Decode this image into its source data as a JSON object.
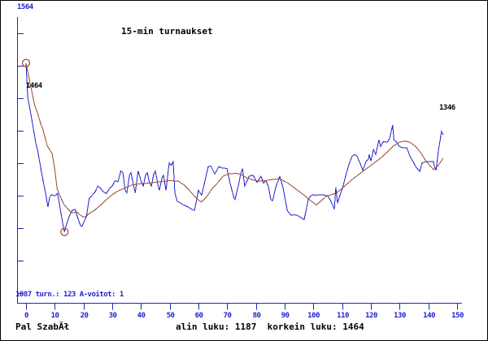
{
  "frame": {
    "background": "#ffffff",
    "border_color": "#000000"
  },
  "colors": {
    "axis_blue": "#2222cc",
    "rating_line_blue": "#2222cc",
    "trend_line_brown": "#9a4632",
    "marker_ring_brown": "#9a4632",
    "blue_text": "#2222cc",
    "black_text": "#000000"
  },
  "text": {
    "title": "15-min turnaukset",
    "y_max_label": "1564",
    "status_line": "1087 turn.: 123 A-voitot: 1",
    "start_value_label": "1464",
    "end_value_label": "1346",
    "player_name": "Pal SzabĂł",
    "summary_line": "alin luku: 1187  korkein luku: 1464"
  },
  "chart_data": {
    "type": "line",
    "title": "15-min turnaukset",
    "xlabel": "",
    "ylabel": "",
    "x_axis": {
      "min": 0,
      "max": 150,
      "tick_interval": 10,
      "ticks": [
        0,
        10,
        20,
        30,
        40,
        50,
        60,
        70,
        80,
        90,
        100,
        110,
        120,
        130,
        140,
        150
      ]
    },
    "y_axis": {
      "top_value": 1564,
      "bottom_value": 1087,
      "top_label": "1564",
      "bottom_label": "1087"
    },
    "stats": {
      "tournaments": 123,
      "a_wins": 1,
      "lowest": 1187,
      "highest": 1464,
      "start_value": 1464,
      "end_value": 1346
    },
    "legend": "none",
    "grid": false,
    "series": [
      {
        "name": "rating",
        "color": "#2222cc",
        "points": [
          [
            0,
            1464
          ],
          [
            0.6,
            1408
          ],
          [
            1.5,
            1385
          ],
          [
            2.5,
            1358
          ],
          [
            3.5,
            1330
          ],
          [
            4,
            1322
          ],
          [
            5,
            1295
          ],
          [
            5.4,
            1284
          ],
          [
            6.4,
            1260
          ],
          [
            7,
            1246
          ],
          [
            7.6,
            1228
          ],
          [
            8.2,
            1244
          ],
          [
            9,
            1248
          ],
          [
            10,
            1246
          ],
          [
            11,
            1250
          ],
          [
            12,
            1222
          ],
          [
            13,
            1195
          ],
          [
            13.4,
            1187
          ],
          [
            14,
            1198
          ],
          [
            15,
            1212
          ],
          [
            16,
            1222
          ],
          [
            17,
            1224
          ],
          [
            18,
            1210
          ],
          [
            19,
            1197
          ],
          [
            19.5,
            1196
          ],
          [
            20,
            1202
          ],
          [
            21,
            1212
          ],
          [
            22,
            1242
          ],
          [
            23,
            1247
          ],
          [
            24,
            1252
          ],
          [
            25,
            1262
          ],
          [
            26,
            1258
          ],
          [
            27,
            1252
          ],
          [
            28,
            1250
          ],
          [
            29,
            1258
          ],
          [
            30,
            1262
          ],
          [
            31,
            1271
          ],
          [
            32,
            1269
          ],
          [
            33,
            1287
          ],
          [
            33.7,
            1284
          ],
          [
            34.5,
            1255
          ],
          [
            35.1,
            1251
          ],
          [
            36,
            1280
          ],
          [
            36.5,
            1284
          ],
          [
            37.4,
            1264
          ],
          [
            38,
            1251
          ],
          [
            39,
            1287
          ],
          [
            40.2,
            1268
          ],
          [
            40.8,
            1262
          ],
          [
            41.6,
            1280
          ],
          [
            42.2,
            1284
          ],
          [
            43,
            1267
          ],
          [
            43.6,
            1262
          ],
          [
            44.4,
            1281
          ],
          [
            45,
            1287
          ],
          [
            45.9,
            1264
          ],
          [
            46.4,
            1255
          ],
          [
            47.3,
            1275
          ],
          [
            47.8,
            1280
          ],
          [
            48.4,
            1264
          ],
          [
            48.7,
            1255
          ],
          [
            49.8,
            1300
          ],
          [
            50.5,
            1296
          ],
          [
            51.2,
            1302
          ],
          [
            51.8,
            1251
          ],
          [
            52.6,
            1237
          ],
          [
            53.5,
            1235
          ],
          [
            54.5,
            1232
          ],
          [
            56.3,
            1228
          ],
          [
            57.7,
            1224
          ],
          [
            58.6,
            1222
          ],
          [
            60,
            1255
          ],
          [
            61.1,
            1247
          ],
          [
            62,
            1265
          ],
          [
            63.4,
            1294
          ],
          [
            64.3,
            1295
          ],
          [
            65.7,
            1282
          ],
          [
            67.1,
            1294
          ],
          [
            68,
            1292
          ],
          [
            69.9,
            1291
          ],
          [
            71,
            1267
          ],
          [
            72.3,
            1243
          ],
          [
            72.7,
            1240
          ],
          [
            74,
            1265
          ],
          [
            74.7,
            1282
          ],
          [
            75.3,
            1291
          ],
          [
            76.1,
            1262
          ],
          [
            77.6,
            1278
          ],
          [
            79,
            1280
          ],
          [
            80.4,
            1268
          ],
          [
            81.8,
            1278
          ],
          [
            82.6,
            1267
          ],
          [
            83.5,
            1271
          ],
          [
            84.3,
            1262
          ],
          [
            85.2,
            1240
          ],
          [
            85.8,
            1238
          ],
          [
            86.9,
            1260
          ],
          [
            88.3,
            1278
          ],
          [
            89.4,
            1260
          ],
          [
            90.9,
            1222
          ],
          [
            92.3,
            1214
          ],
          [
            93.1,
            1215
          ],
          [
            94.5,
            1214
          ],
          [
            95.4,
            1211
          ],
          [
            96.8,
            1207
          ],
          [
            98.2,
            1240
          ],
          [
            99,
            1246
          ],
          [
            100,
            1248
          ],
          [
            101,
            1247
          ],
          [
            102,
            1248
          ],
          [
            103,
            1248
          ],
          [
            104,
            1247
          ],
          [
            105,
            1246
          ],
          [
            106,
            1238
          ],
          [
            106.7,
            1231
          ],
          [
            107.3,
            1224
          ],
          [
            107.8,
            1260
          ],
          [
            108.4,
            1234
          ],
          [
            109.3,
            1248
          ],
          [
            110.1,
            1258
          ],
          [
            111.2,
            1278
          ],
          [
            112.4,
            1298
          ],
          [
            113.5,
            1311
          ],
          [
            114.4,
            1314
          ],
          [
            115.2,
            1311
          ],
          [
            116,
            1302
          ],
          [
            117.2,
            1288
          ],
          [
            118.3,
            1302
          ],
          [
            119.2,
            1307
          ],
          [
            119.4,
            1314
          ],
          [
            120,
            1303
          ],
          [
            120.9,
            1322
          ],
          [
            121.7,
            1314
          ],
          [
            122.8,
            1338
          ],
          [
            123.4,
            1327
          ],
          [
            124.3,
            1335
          ],
          [
            125.7,
            1334
          ],
          [
            126.5,
            1340
          ],
          [
            127.6,
            1362
          ],
          [
            128,
            1338
          ],
          [
            129,
            1334
          ],
          [
            129.9,
            1327
          ],
          [
            131,
            1325
          ],
          [
            132.5,
            1325
          ],
          [
            133.6,
            1311
          ],
          [
            134.7,
            1302
          ],
          [
            135.6,
            1294
          ],
          [
            137,
            1286
          ],
          [
            137.8,
            1300
          ],
          [
            139,
            1302
          ],
          [
            140,
            1302
          ],
          [
            141,
            1302
          ],
          [
            141.8,
            1302
          ],
          [
            142.1,
            1295
          ],
          [
            142.7,
            1288
          ],
          [
            143.5,
            1320
          ],
          [
            144.6,
            1352
          ],
          [
            145.2,
            1346
          ]
        ]
      },
      {
        "name": "trend",
        "color": "#9a4632",
        "points": [
          [
            0,
            1464
          ],
          [
            1,
            1441
          ],
          [
            2,
            1417
          ],
          [
            3,
            1395
          ],
          [
            4,
            1382
          ],
          [
            5,
            1366
          ],
          [
            5.9,
            1355
          ],
          [
            7.4,
            1328
          ],
          [
            9.1,
            1315
          ],
          [
            10,
            1290
          ],
          [
            10.8,
            1258
          ],
          [
            12,
            1244
          ],
          [
            13.3,
            1231
          ],
          [
            14.7,
            1224
          ],
          [
            16,
            1218
          ],
          [
            17.6,
            1220
          ],
          [
            19,
            1214
          ],
          [
            20.1,
            1211
          ],
          [
            21,
            1213
          ],
          [
            22,
            1217
          ],
          [
            24,
            1223
          ],
          [
            26,
            1231
          ],
          [
            28,
            1240
          ],
          [
            30,
            1248
          ],
          [
            32,
            1254
          ],
          [
            34,
            1258
          ],
          [
            37,
            1264
          ],
          [
            40,
            1266
          ],
          [
            43,
            1267
          ],
          [
            46,
            1269
          ],
          [
            50,
            1271
          ],
          [
            53,
            1270
          ],
          [
            55,
            1264
          ],
          [
            56.3,
            1258
          ],
          [
            58.3,
            1247
          ],
          [
            60,
            1239
          ],
          [
            61.1,
            1236
          ],
          [
            62.8,
            1244
          ],
          [
            64.8,
            1258
          ],
          [
            66.8,
            1268
          ],
          [
            68.5,
            1278
          ],
          [
            70.5,
            1282
          ],
          [
            73.3,
            1283
          ],
          [
            75.3,
            1280
          ],
          [
            77,
            1275
          ],
          [
            79,
            1272
          ],
          [
            81,
            1270
          ],
          [
            83.2,
            1271
          ],
          [
            86,
            1273
          ],
          [
            88.3,
            1274
          ],
          [
            91.1,
            1267
          ],
          [
            93.1,
            1260
          ],
          [
            95.1,
            1253
          ],
          [
            96.8,
            1247
          ],
          [
            98.8,
            1239
          ],
          [
            101,
            1231
          ],
          [
            103,
            1239
          ],
          [
            104.4,
            1245
          ],
          [
            108.1,
            1251
          ],
          [
            110.9,
            1262
          ],
          [
            113.8,
            1274
          ],
          [
            117.7,
            1288
          ],
          [
            120.6,
            1298
          ],
          [
            123.4,
            1308
          ],
          [
            126.2,
            1320
          ],
          [
            127.9,
            1328
          ],
          [
            129.9,
            1334
          ],
          [
            131.9,
            1336
          ],
          [
            133.6,
            1334
          ],
          [
            135.6,
            1327
          ],
          [
            137.6,
            1315
          ],
          [
            139.3,
            1302
          ],
          [
            141.2,
            1292
          ],
          [
            142,
            1289
          ],
          [
            143.5,
            1296
          ],
          [
            145.2,
            1308
          ]
        ]
      }
    ],
    "markers": [
      {
        "x": 0,
        "value": 1464,
        "label": "start/highest"
      },
      {
        "x": 13.4,
        "value": 1187,
        "label": "lowest"
      }
    ]
  }
}
